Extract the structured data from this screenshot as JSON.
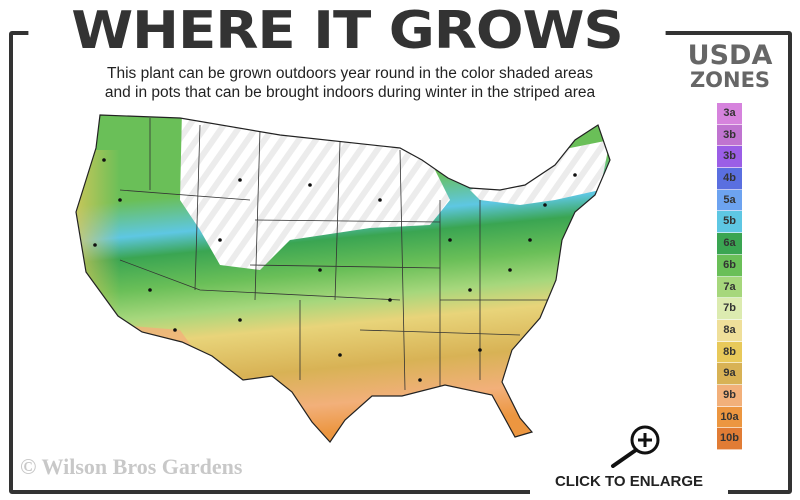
{
  "title": "WHERE IT GROWS",
  "subtitle": {
    "line1": "This plant can be grown outdoors year round in the color shaded areas",
    "line2": "and in pots that can be brought indoors during winter in the striped area"
  },
  "legend": {
    "title_line1": "USDA",
    "title_line2": "ZONES",
    "zones": [
      {
        "label": "3a",
        "color": "#d683dd"
      },
      {
        "label": "3b",
        "color": "#c074d0"
      },
      {
        "label": "3b",
        "color": "#9b5ee6"
      },
      {
        "label": "4b",
        "color": "#5a6fe0"
      },
      {
        "label": "5a",
        "color": "#6da3f0"
      },
      {
        "label": "5b",
        "color": "#5ec7e3"
      },
      {
        "label": "6a",
        "color": "#3aa552"
      },
      {
        "label": "6b",
        "color": "#6abf58"
      },
      {
        "label": "7a",
        "color": "#a6d77c"
      },
      {
        "label": "7b",
        "color": "#dcebb0"
      },
      {
        "label": "8a",
        "color": "#efdf9a"
      },
      {
        "label": "8b",
        "color": "#e8c95a"
      },
      {
        "label": "9a",
        "color": "#d8b255"
      },
      {
        "label": "9b",
        "color": "#f2b07a"
      },
      {
        "label": "10a",
        "color": "#ec9640"
      },
      {
        "label": "10b",
        "color": "#e17c35"
      }
    ]
  },
  "copyright": "© Wilson Bros Gardens",
  "enlarge_label": "CLICK TO ENLARGE",
  "icons": {
    "enlarge": "magnifier-plus-icon"
  }
}
